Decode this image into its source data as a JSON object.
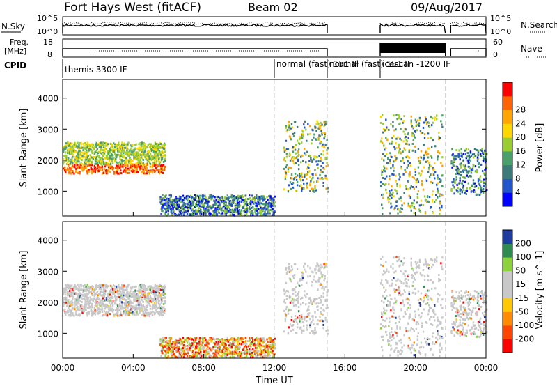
{
  "header": {
    "station": "Fort Hays West (fitACF)",
    "beam": "Beam 02",
    "date": "09/Aug/2017"
  },
  "noise_panel": {
    "left_label": "N.Sky",
    "right_label": "N.Search",
    "ticks_top": "10^5",
    "ticks_bottom": "10^0"
  },
  "freq_panel": {
    "left_label_1": "Freq.",
    "left_label_2": "[MHz]",
    "right_label": "Nave",
    "left_ticks": [
      "18",
      "8"
    ],
    "right_ticks": [
      "60",
      "0"
    ]
  },
  "cpid": {
    "label": "CPID",
    "modes": [
      {
        "name": "themis 3300 IF",
        "start_h": 0
      },
      {
        "name": "normal (fast) 151 IF",
        "start_h": 12
      },
      {
        "name": "normal (fast) 151 IF",
        "start_h": 15
      },
      {
        "name": "icescan -1200 IF",
        "start_h": 18
      }
    ]
  },
  "chart_data": [
    {
      "type": "heatmap",
      "ylabel": "Slant Range [km]",
      "yticks": [
        "1000",
        "2000",
        "3000",
        "4000"
      ],
      "ylim": [
        200,
        4600
      ],
      "xlim": [
        0,
        24
      ],
      "colorbar": {
        "label": "Power [dB]",
        "ticks": [
          "4",
          "8",
          "12",
          "16",
          "20",
          "24",
          "28"
        ],
        "colors": [
          "#0000ff",
          "#2255cc",
          "#3d7a7a",
          "#4aa06a",
          "#9acd32",
          "#ffd700",
          "#ffa500",
          "#ff6400",
          "#ff0000"
        ]
      },
      "echo_regions": [
        {
          "t0": 0.0,
          "t1": 5.8,
          "r0": 1600,
          "r1": 2600,
          "level": "high"
        },
        {
          "t0": 5.5,
          "t1": 12.0,
          "r0": 250,
          "r1": 900,
          "level": "low"
        },
        {
          "t0": 12.5,
          "t1": 15.0,
          "r0": 1000,
          "r1": 3300,
          "level": "mid"
        },
        {
          "t0": 18.0,
          "t1": 21.5,
          "r0": 300,
          "r1": 3500,
          "level": "mid"
        },
        {
          "t0": 22.0,
          "t1": 24.0,
          "r0": 900,
          "r1": 2400,
          "level": "low"
        }
      ]
    },
    {
      "type": "heatmap",
      "ylabel": "Slant Range [km]",
      "xlabel": "Time UT",
      "xticks": [
        "00:00",
        "04:00",
        "08:00",
        "12:00",
        "16:00",
        "20:00",
        "00:00"
      ],
      "yticks": [
        "1000",
        "2000",
        "3000",
        "4000"
      ],
      "ylim": [
        200,
        4600
      ],
      "xlim": [
        0,
        24
      ],
      "colorbar": {
        "label": "Velocity [m s^-1]",
        "ticks": [
          "200",
          "100",
          "50",
          "15",
          "-15",
          "-50",
          "-100",
          "-200"
        ],
        "colors": [
          "#1e3ca0",
          "#2f8c50",
          "#8cd23c",
          "#c8c8c8",
          "#c8c8c8",
          "#ffc800",
          "#ff8c00",
          "#ff4600",
          "#ff0000"
        ]
      }
    }
  ]
}
